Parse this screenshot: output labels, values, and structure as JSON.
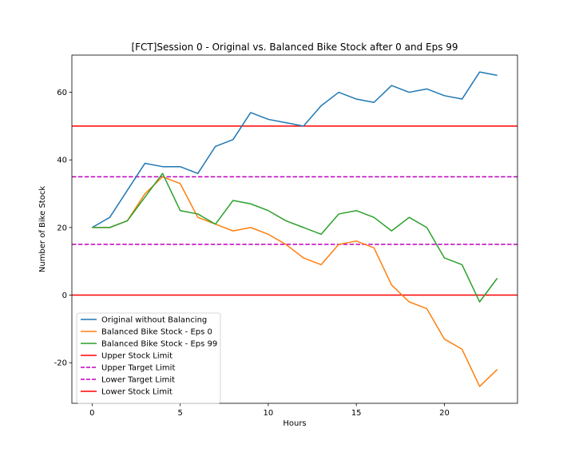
{
  "chart_data": {
    "type": "line",
    "title": "[FCT]Session 0 - Original vs. Balanced Bike Stock after 0 and Eps 99",
    "xlabel": "Hours",
    "ylabel": "Number of Bike Stock",
    "xlim": [
      -1.15,
      24.15
    ],
    "ylim": [
      -32,
      71
    ],
    "xticks": [
      0,
      5,
      10,
      15,
      20
    ],
    "yticks": [
      -20,
      0,
      20,
      40,
      60
    ],
    "legend_position": "lower-left",
    "x": [
      0,
      1,
      2,
      3,
      4,
      5,
      6,
      7,
      8,
      9,
      10,
      11,
      12,
      13,
      14,
      15,
      16,
      17,
      18,
      19,
      20,
      21,
      22,
      23
    ],
    "series": [
      {
        "name": "Original without Balancing",
        "color": "#1f77b4",
        "values": [
          20,
          23,
          31,
          39,
          38,
          38,
          36,
          44,
          46,
          54,
          52,
          51,
          50,
          56,
          60,
          58,
          57,
          62,
          60,
          61,
          59,
          58,
          66,
          65
        ]
      },
      {
        "name": "Balanced Bike Stock - Eps 0",
        "color": "#ff7f0e",
        "values": [
          20,
          20,
          22,
          30,
          35,
          33,
          23,
          21,
          19,
          20,
          18,
          15,
          11,
          9,
          15,
          16,
          14,
          3,
          -2,
          -4,
          -13,
          -16,
          -27,
          -22
        ]
      },
      {
        "name": "Balanced Bike Stock - Eps 99",
        "color": "#2ca02c",
        "values": [
          20,
          20,
          22,
          29,
          36,
          25,
          24,
          21,
          28,
          27,
          25,
          22,
          20,
          18,
          24,
          25,
          23,
          19,
          23,
          20,
          11,
          9,
          -2,
          5
        ]
      }
    ],
    "hlines": [
      {
        "name": "Upper Stock Limit",
        "y": 50,
        "color": "#ff0000",
        "style": "solid"
      },
      {
        "name": "Upper Target Limit",
        "y": 35,
        "color": "#bf00bf",
        "style": "dashed"
      },
      {
        "name": "Lower Target Limit",
        "y": 15,
        "color": "#bf00bf",
        "style": "dashed"
      },
      {
        "name": "Lower Stock Limit",
        "y": 0,
        "color": "#ff0000",
        "style": "solid"
      }
    ]
  }
}
